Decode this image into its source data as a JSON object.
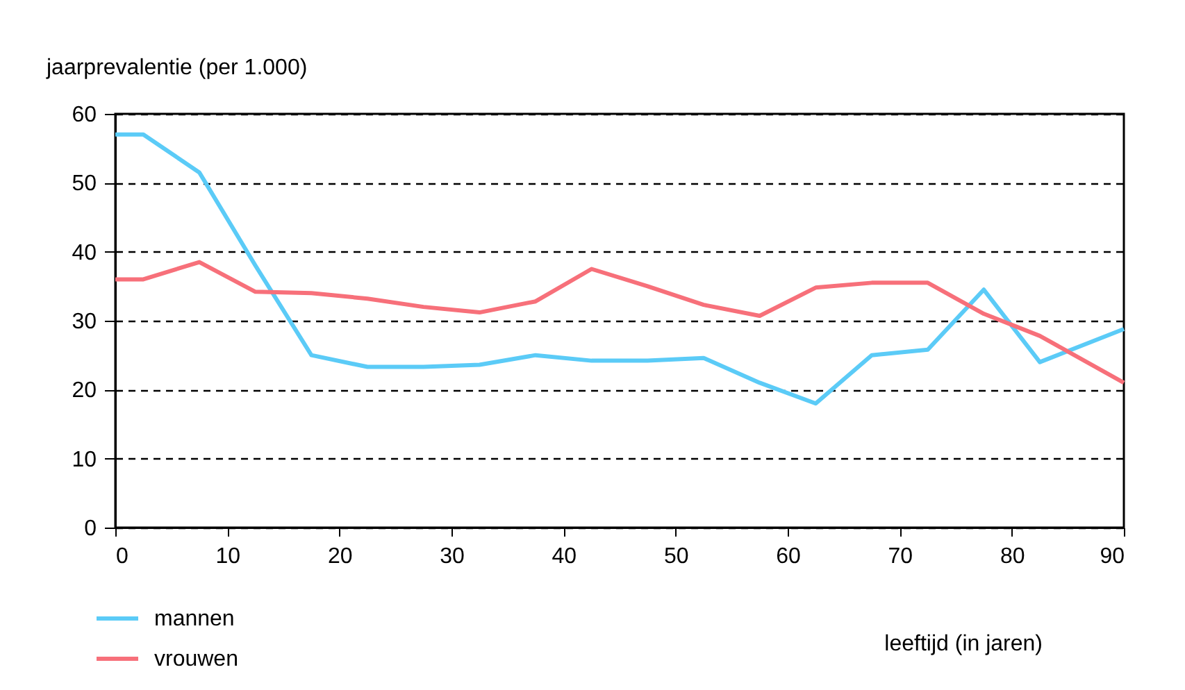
{
  "chart_data": {
    "type": "line",
    "ylabel": "jaarprevalentie (per 1.000)",
    "xlabel": "leeftijd (in jaren)",
    "xlim": [
      0,
      90
    ],
    "xticks": [
      0,
      10,
      20,
      30,
      40,
      50,
      60,
      70,
      80,
      90
    ],
    "ylim": [
      0,
      60
    ],
    "yticks": [
      0,
      10,
      20,
      30,
      40,
      50,
      60
    ],
    "grid": "y",
    "legend": "bottom left",
    "line_style": "solid",
    "marker": "none",
    "x": [
      0,
      2.5,
      7.5,
      12.5,
      17.5,
      22.5,
      27.5,
      32.5,
      37.5,
      42.5,
      47.5,
      52.5,
      57.5,
      62.5,
      67.5,
      72.5,
      77.5,
      82.5,
      90
    ],
    "series": [
      {
        "name": "mannen",
        "color": "#5bcbf7",
        "values": [
          57,
          57,
          51.5,
          38,
          25,
          23.3,
          23.3,
          23.6,
          25,
          24.2,
          24.2,
          24.6,
          21,
          18,
          25,
          25.8,
          34.5,
          24,
          28.8
        ]
      },
      {
        "name": "vrouwen",
        "color": "#f7707a",
        "values": [
          36,
          36,
          38.5,
          34.2,
          34,
          33.2,
          32,
          31.2,
          32.8,
          37.5,
          35,
          32.3,
          30.7,
          34.8,
          35.5,
          35.5,
          31,
          27.8,
          21
        ]
      }
    ]
  }
}
